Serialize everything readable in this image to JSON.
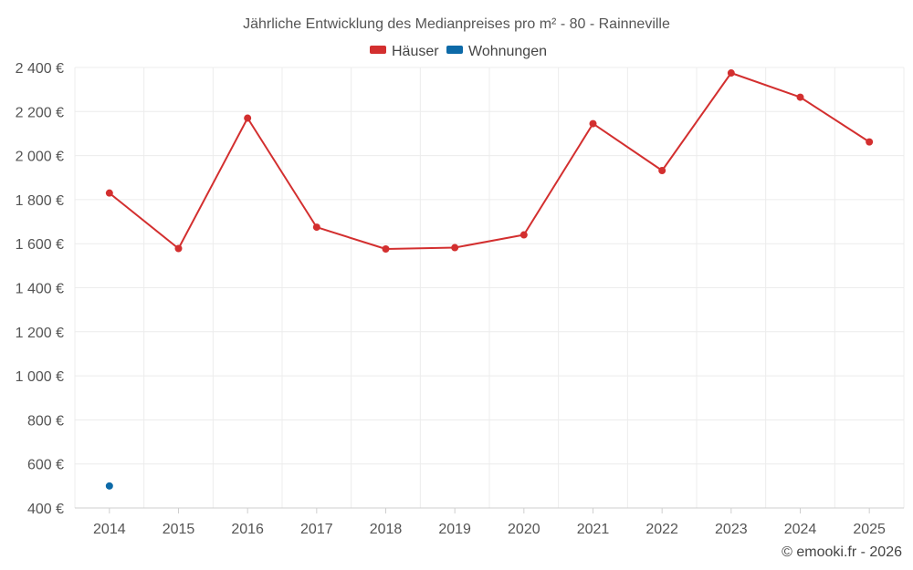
{
  "chart_data": {
    "type": "line",
    "title": "Jährliche Entwicklung des Medianpreises pro m² - 80 - Rainneville",
    "xlabel": "",
    "ylabel": "",
    "x": [
      "2014",
      "2015",
      "2016",
      "2017",
      "2018",
      "2019",
      "2020",
      "2021",
      "2022",
      "2023",
      "2024",
      "2025"
    ],
    "ylim": [
      400,
      2400
    ],
    "yticks": [
      400,
      600,
      800,
      1000,
      1200,
      1400,
      1600,
      1800,
      2000,
      2200,
      2400
    ],
    "ytick_labels": [
      "400 €",
      "600 €",
      "800 €",
      "1 000 €",
      "1 200 €",
      "1 400 €",
      "1 600 €",
      "1 800 €",
      "2 000 €",
      "2 200 €",
      "2 400 €"
    ],
    "grid": true,
    "legend_position": "top-center",
    "series": [
      {
        "name": "Häuser",
        "color": "#d32f2f",
        "values": [
          1830,
          1578,
          2170,
          1675,
          1576,
          1582,
          1640,
          2145,
          1932,
          2375,
          2265,
          2062
        ]
      },
      {
        "name": "Wohnungen",
        "color": "#0d6aa8",
        "values": [
          500,
          null,
          null,
          null,
          null,
          null,
          null,
          null,
          null,
          null,
          null,
          null
        ]
      }
    ]
  },
  "credit": "© emooki.fr - 2026"
}
